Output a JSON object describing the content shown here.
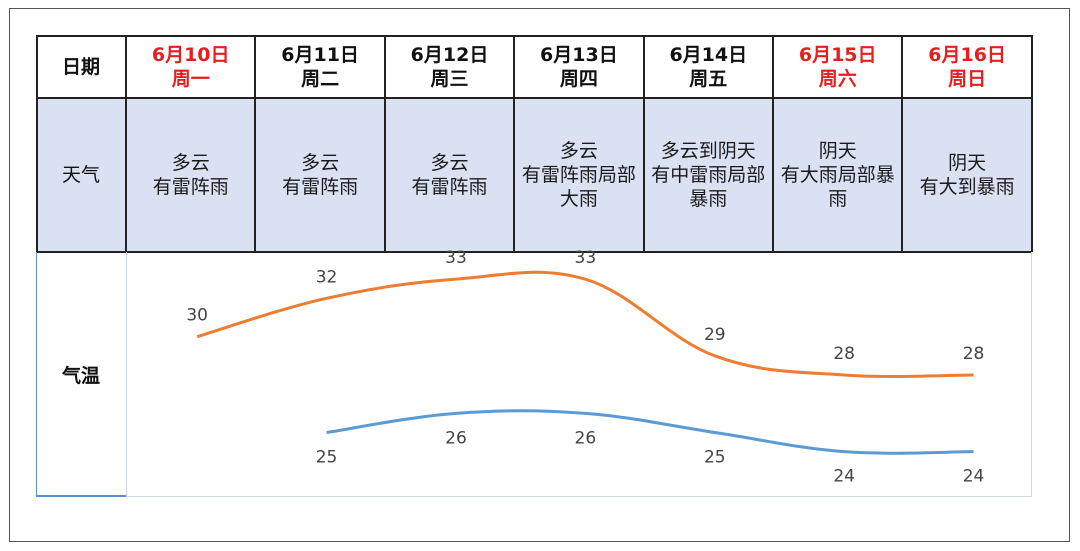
{
  "table": {
    "row_labels": {
      "date": "日期",
      "weather": "天气",
      "temp": "气温"
    },
    "days": [
      {
        "date": "6月10日",
        "weekday": "周一",
        "weekend": true,
        "weather": [
          "多云",
          "有雷阵雨"
        ]
      },
      {
        "date": "6月11日",
        "weekday": "周二",
        "weekend": false,
        "weather": [
          "多云",
          "有雷阵雨"
        ]
      },
      {
        "date": "6月12日",
        "weekday": "周三",
        "weekend": false,
        "weather": [
          "多云",
          "有雷阵雨"
        ]
      },
      {
        "date": "6月13日",
        "weekday": "周四",
        "weekend": false,
        "weather": [
          "多云",
          "有雷阵雨局部",
          "大雨"
        ]
      },
      {
        "date": "6月14日",
        "weekday": "周五",
        "weekend": false,
        "weather": [
          "多云到阴天",
          "有中雷雨局部",
          "暴雨"
        ]
      },
      {
        "date": "6月15日",
        "weekday": "周六",
        "weekend": true,
        "weather": [
          "阴天",
          "有大雨局部暴",
          "雨"
        ]
      },
      {
        "date": "6月16日",
        "weekday": "周日",
        "weekend": true,
        "weather": [
          "阴天",
          "有大到暴雨"
        ]
      }
    ]
  },
  "chart_data": {
    "type": "line",
    "categories": [
      "6月10日",
      "6月11日",
      "6月12日",
      "6月13日",
      "6月14日",
      "6月15日",
      "6月16日"
    ],
    "series": [
      {
        "color": "#ed7d31",
        "values": [
          30,
          32,
          33,
          33,
          29,
          28,
          28
        ]
      },
      {
        "color": "#5b9bd5",
        "values": [
          null,
          25,
          26,
          26,
          25,
          24,
          24
        ]
      }
    ],
    "ylim": [
      22,
      34
    ],
    "grid": false,
    "legend": "none"
  }
}
